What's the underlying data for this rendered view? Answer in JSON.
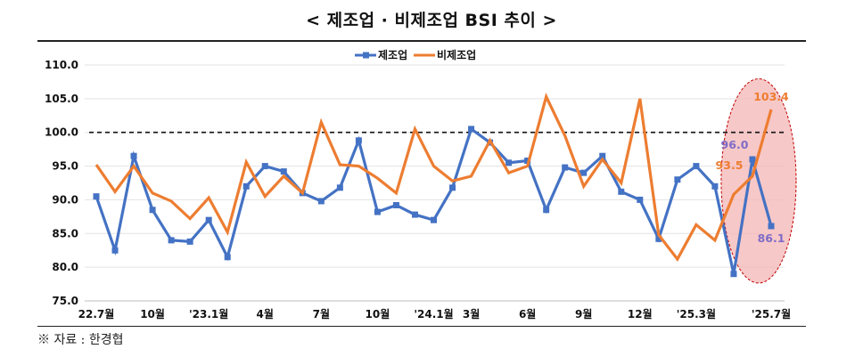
{
  "title": "< 제조업 · 비제조업 BSI 추이 >",
  "source": "※ 자료 : 한경협",
  "chart_data": {
    "type": "line",
    "title": "< 제조업 · 비제조업 BSI 추이 >",
    "xlabel": "",
    "ylabel": "",
    "ylim": [
      75.0,
      110.0
    ],
    "yticks": [
      "75.0",
      "80.0",
      "85.0",
      "90.0",
      "95.0",
      "100.0",
      "105.0",
      "110.0"
    ],
    "grid": "horizontal",
    "legend": "top-center",
    "reference_line": 100.0,
    "x_tick_labels": [
      {
        "index": 0,
        "label": "22.7월"
      },
      {
        "index": 3,
        "label": "10월"
      },
      {
        "index": 6,
        "label": "'23.1월"
      },
      {
        "index": 9,
        "label": "4월"
      },
      {
        "index": 12,
        "label": "7월"
      },
      {
        "index": 15,
        "label": "10월"
      },
      {
        "index": 18,
        "label": "'24.1월"
      },
      {
        "index": 20,
        "label": "3월"
      },
      {
        "index": 23,
        "label": "6월"
      },
      {
        "index": 26,
        "label": "9월"
      },
      {
        "index": 29,
        "label": "12월"
      },
      {
        "index": 32,
        "label": "'25.3월"
      },
      {
        "index": 36,
        "label": "'25.7월"
      }
    ],
    "series": [
      {
        "name": "제조업",
        "color": "#4472C4",
        "marker": "square",
        "values": [
          90.5,
          82.5,
          96.5,
          88.5,
          84.0,
          83.8,
          87.0,
          81.5,
          92.0,
          95.0,
          94.2,
          91.0,
          89.8,
          91.8,
          98.8,
          88.2,
          89.2,
          87.8,
          87.0,
          91.8,
          100.5,
          98.5,
          95.5,
          95.8,
          88.5,
          94.8,
          94.0,
          96.5,
          91.2,
          90.0,
          84.2,
          93.0,
          95.0,
          92.0,
          79.0,
          96.0,
          86.1
        ]
      },
      {
        "name": "비제조업",
        "color": "#ED7D31",
        "marker": "none",
        "values": [
          95.2,
          91.2,
          95.0,
          91.0,
          89.8,
          87.2,
          90.3,
          85.2,
          95.6,
          90.5,
          93.5,
          91.0,
          101.5,
          95.2,
          95.0,
          93.2,
          91.0,
          100.5,
          95.0,
          92.8,
          93.5,
          98.8,
          94.0,
          95.0,
          105.3,
          99.5,
          92.0,
          96.0,
          92.5,
          105.0,
          84.8,
          81.2,
          86.3,
          84.0,
          90.8,
          93.5,
          103.4
        ]
      }
    ],
    "annotations": [
      {
        "text": "103.4",
        "series": "비제조업",
        "index": 36,
        "color": "#ED7D31"
      },
      {
        "text": "93.5",
        "series": "비제조업",
        "index": 35,
        "color": "#ED7D31"
      },
      {
        "text": "96.0",
        "series": "제조업",
        "index": 35,
        "color": "#7F6CC7"
      },
      {
        "text": "86.1",
        "series": "제조업",
        "index": 36,
        "color": "#7F6CC7"
      }
    ],
    "highlight": {
      "from_index": 34,
      "to_index": 36,
      "color": "#F4B6B6"
    }
  }
}
